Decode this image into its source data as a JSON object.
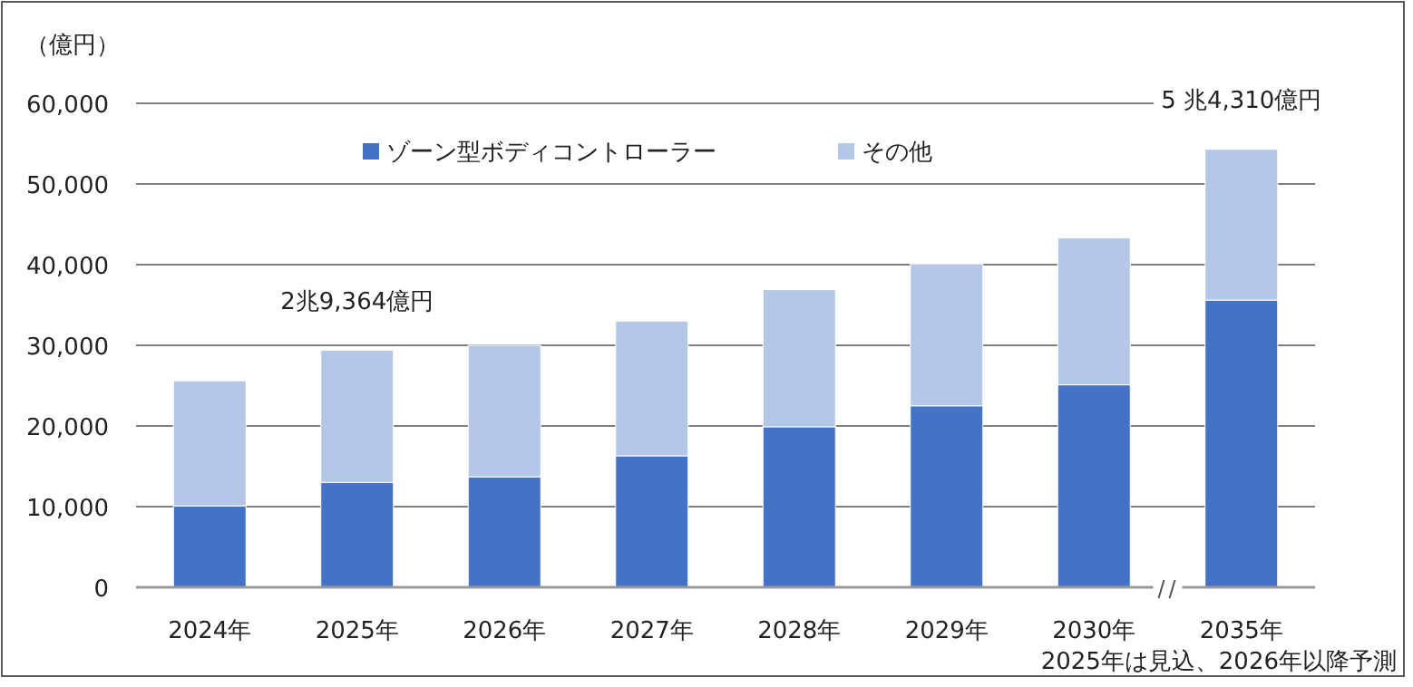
{
  "chart_data": {
    "type": "bar",
    "stacked": true,
    "ylabel": "（億円）",
    "categories": [
      "2024年",
      "2025年",
      "2026年",
      "2027年",
      "2028年",
      "2029年",
      "2030年",
      "2035年"
    ],
    "series": [
      {
        "name": "ゾーン型ボディコントローラー",
        "color": "#4472c4",
        "values": [
          10100,
          13000,
          13700,
          16300,
          19900,
          22500,
          25100,
          35600
        ]
      },
      {
        "name": "その他",
        "color": "#b4c7e7",
        "values": [
          15500,
          16400,
          16300,
          16700,
          17000,
          17600,
          18200,
          18700
        ]
      }
    ],
    "ylim": [
      0,
      60000
    ],
    "yticks": [
      {
        "value": 0,
        "label": "0"
      },
      {
        "value": 10000,
        "label": "10,000"
      },
      {
        "value": 20000,
        "label": "20,000"
      },
      {
        "value": 30000,
        "label": "30,000"
      },
      {
        "value": 40000,
        "label": "40,000"
      },
      {
        "value": 50000,
        "label": "50,000"
      },
      {
        "value": 60000,
        "label": "60,000"
      }
    ],
    "grid": "y",
    "legend": "top",
    "annotations": [
      {
        "text": "2兆9,364億円",
        "x": "2025年",
        "y": 29364
      },
      {
        "text": "5 兆4,310億円",
        "x": "2035年",
        "y": 54310
      },
      "2025年は見込、2026年以降予測"
    ]
  }
}
